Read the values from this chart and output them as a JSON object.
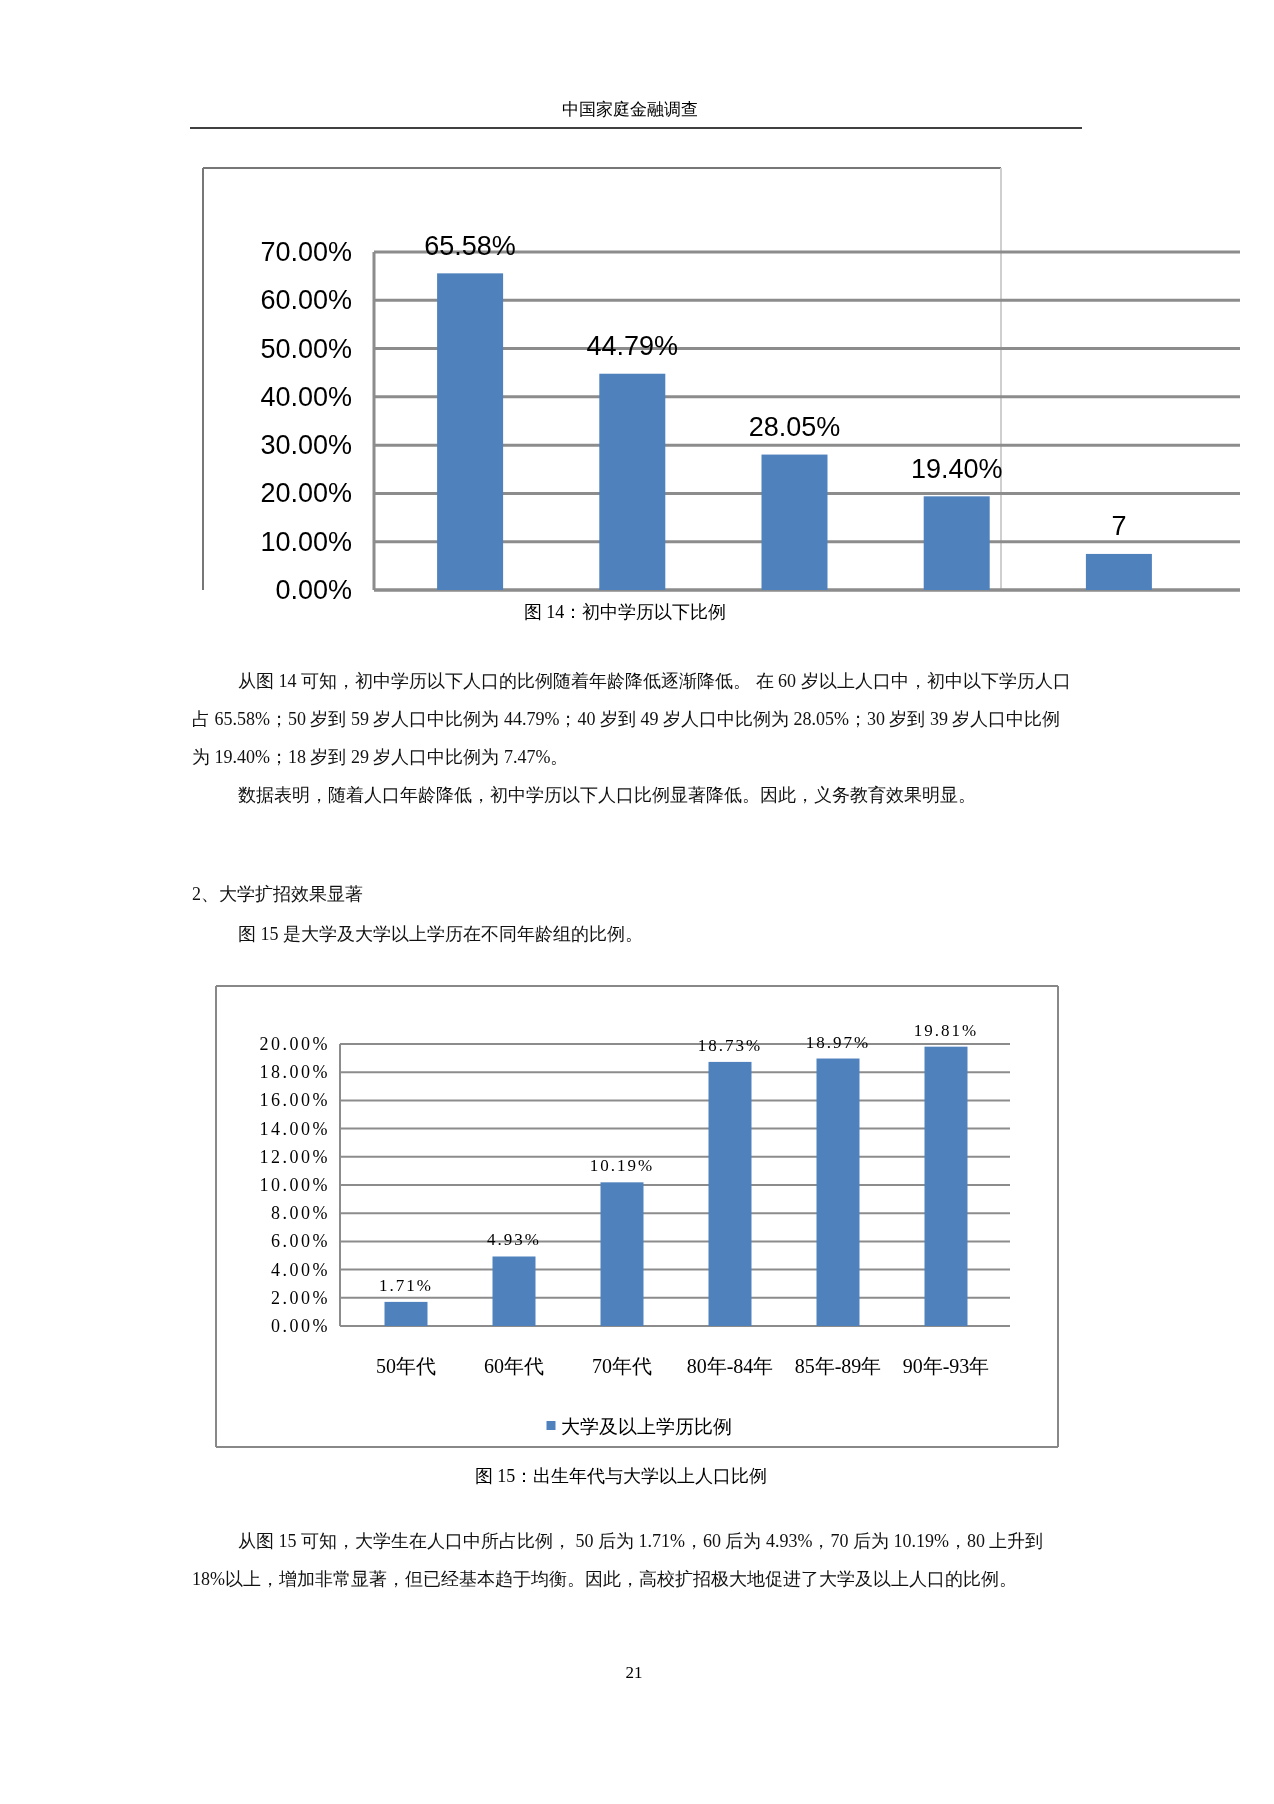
{
  "chart_data": [
    {
      "type": "bar",
      "categories": [
        null,
        null,
        null,
        null,
        null
      ],
      "values": [
        65.58,
        44.79,
        28.05,
        19.4,
        7.47
      ],
      "color": "#4f81bd",
      "value_labels": [
        "65.58%",
        "44.79%",
        "28.05%",
        "19.40%",
        "7"
      ],
      "ylim": [
        0,
        70
      ],
      "yticks": [
        {
          "value": 0,
          "label": "0.00%"
        },
        {
          "value": 10,
          "label": "10.00%"
        },
        {
          "value": 20,
          "label": "20.00%"
        },
        {
          "value": 30,
          "label": "30.00%"
        },
        {
          "value": 40,
          "label": "40.00%"
        },
        {
          "value": 50,
          "label": "50.00%"
        },
        {
          "value": 60,
          "label": "60.00%"
        },
        {
          "value": 70,
          "label": "70.00%"
        }
      ],
      "grid": "y",
      "tick_labels": "y",
      "annotations": [
        "中国家庭金融调查",
        "图 14：初中学历以下比例",
        "从图 14 可知，初中学历以下人口的比例随着年龄降低逐渐降低。 在 60 岁以上人口中，初中以下学历人口占 65.58%；50 岁到 59 岁人口中比例为 44.79%；40 岁到 49 岁人口中比例为 28.05%；30 岁到 39 岁人口中比例为 19.40%；18 岁到 29 岁人口中比例为 7.47%。",
        "数据表明，随着人口年龄降低，初中学历以下人口比例显著降低。因此，义务教育效果明显。"
      ]
    },
    {
      "type": "bar",
      "categories": [
        "50年代",
        "60年代",
        "70年代",
        "80年-84年",
        "85年-89年",
        "90年-93年"
      ],
      "series": [
        {
          "name": "大学及以上学历比例",
          "color": "#4f81bd",
          "values": [
            1.71,
            4.93,
            10.19,
            18.73,
            18.97,
            19.81
          ],
          "value_labels": [
            "1.71%",
            "4.93%",
            "10.19%",
            "18.73%",
            "18.97%",
            "19.81%"
          ]
        }
      ],
      "ylim": [
        0,
        20
      ],
      "yticks": [
        {
          "value": 0,
          "label": "0.00%"
        },
        {
          "value": 2,
          "label": "2.00%"
        },
        {
          "value": 4,
          "label": "4.00%"
        },
        {
          "value": 6,
          "label": "6.00%"
        },
        {
          "value": 8,
          "label": "8.00%"
        },
        {
          "value": 10,
          "label": "10.00%"
        },
        {
          "value": 12,
          "label": "12.00%"
        },
        {
          "value": 14,
          "label": "14.00%"
        },
        {
          "value": 16,
          "label": "16.00%"
        },
        {
          "value": 18,
          "label": "18.00%"
        },
        {
          "value": 20,
          "label": "20.00%"
        }
      ],
      "grid": "y",
      "legend": "bottom",
      "annotations": [
        "2、大学扩招效果显著",
        "图 15 是大学及大学以上学历在不同年龄组的比例。",
        "图 15：出生年代与大学以上人口比例",
        "从图 15 可知，大学生在人口中所占比例， 50 后为 1.71%，60 后为 4.93%，70 后为 10.19%，80 上升到 18%以上，增加非常显著，但已经基本趋于均衡。因此，高校扩招极大地促进了大学及以上人口的比例。",
        "21"
      ]
    }
  ]
}
